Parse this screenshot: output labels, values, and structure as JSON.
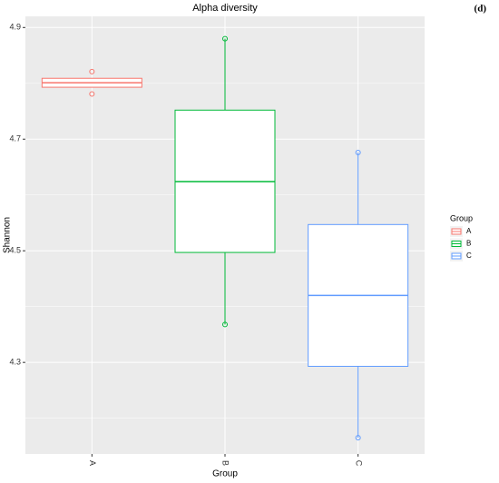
{
  "chart_data": {
    "type": "box",
    "title": "Alpha diversity",
    "panel_label": "(d)",
    "x_label": "Group",
    "y_label": "Shannon",
    "legend_title": "Group",
    "categories": [
      "A",
      "B",
      "C"
    ],
    "groups": [
      {
        "name": "A",
        "color": "#F8766D",
        "whisker_low": 4.793,
        "q1": 4.793,
        "median": 4.801,
        "q3": 4.809,
        "whisker_high": 4.809,
        "points": [
          4.821,
          4.781
        ]
      },
      {
        "name": "B",
        "color": "#00BA38",
        "whisker_low": 4.368,
        "q1": 4.497,
        "median": 4.624,
        "q3": 4.752,
        "whisker_high": 4.88,
        "points": [
          4.88,
          4.368
        ]
      },
      {
        "name": "C",
        "color": "#619CFF",
        "whisker_low": 4.165,
        "q1": 4.293,
        "median": 4.42,
        "q3": 4.547,
        "whisker_high": 4.676,
        "points": [
          4.676,
          4.165
        ]
      }
    ],
    "ylim": [
      4.136,
      4.92
    ],
    "yticks": [
      {
        "value": 4.3,
        "label": "4.3"
      },
      {
        "value": 4.5,
        "label": "4.5"
      },
      {
        "value": 4.7,
        "label": "4.7"
      },
      {
        "value": 4.9,
        "label": "4.9"
      }
    ],
    "minor_yticks": [
      4.2,
      4.4,
      4.6,
      4.8
    ],
    "grid": true
  }
}
